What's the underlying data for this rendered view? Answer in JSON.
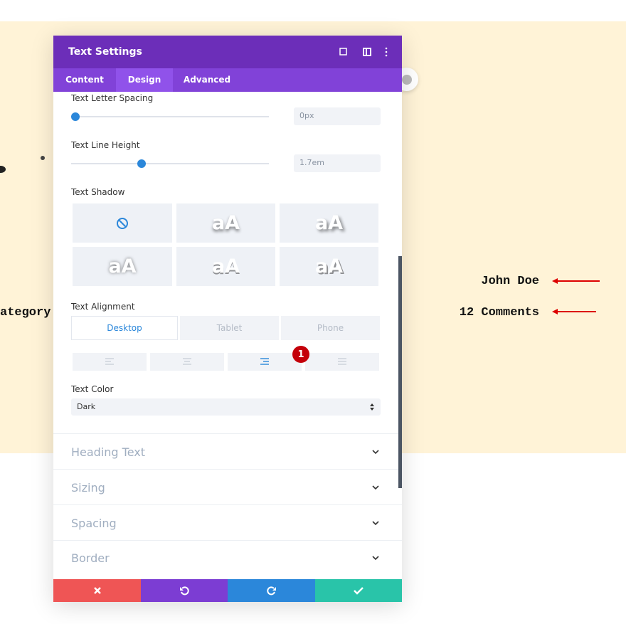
{
  "modal": {
    "title": "Text Settings",
    "tabs": [
      "Content",
      "Design",
      "Advanced"
    ],
    "letter_spacing": {
      "label": "Text Letter Spacing",
      "value": "0px"
    },
    "line_height": {
      "label": "Text Line Height",
      "value": "1.7em"
    },
    "shadow": {
      "label": "Text Shadow",
      "previews": [
        "aA",
        "aA",
        "aA",
        "aA",
        "aA"
      ]
    },
    "alignment": {
      "label": "Text Alignment",
      "devices": [
        "Desktop",
        "Tablet",
        "Phone"
      ],
      "badge": "1"
    },
    "color": {
      "label": "Text Color",
      "value": "Dark"
    },
    "sections": [
      "Heading Text",
      "Sizing",
      "Spacing",
      "Border"
    ]
  },
  "background": {
    "author": "John Doe",
    "comments": "12 Comments",
    "category": "ategory :"
  }
}
